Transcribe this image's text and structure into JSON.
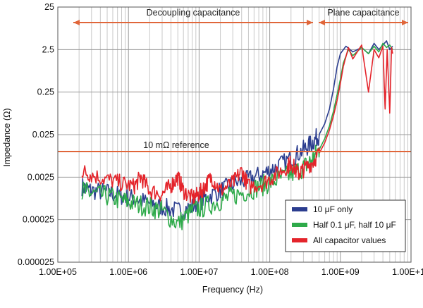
{
  "chart_data": {
    "type": "line",
    "x_scale": "log",
    "y_scale": "log",
    "xlim": [
      100000,
      10000000000
    ],
    "ylim": [
      2.5e-05,
      25
    ],
    "xlabel": "Frequency (Hz)",
    "ylabel": "Impedance (Ω)",
    "x_ticks": [
      {
        "value": 100000,
        "label": "1.00E+05"
      },
      {
        "value": 1000000,
        "label": "1.00E+06"
      },
      {
        "value": 10000000,
        "label": "1.00E+07"
      },
      {
        "value": 100000000,
        "label": "1.00E+08"
      },
      {
        "value": 1000000000,
        "label": "1.00E+09"
      },
      {
        "value": 10000000000,
        "label": "1.00E+10"
      }
    ],
    "y_ticks": [
      {
        "value": 25,
        "label": "25"
      },
      {
        "value": 2.5,
        "label": "2.5"
      },
      {
        "value": 0.25,
        "label": "0.25"
      },
      {
        "value": 0.025,
        "label": "0.025"
      },
      {
        "value": 0.0025,
        "label": "0.0025"
      },
      {
        "value": 0.00025,
        "label": "0.00025"
      },
      {
        "value": 2.5e-05,
        "label": "0.000025"
      }
    ],
    "grid": true,
    "legend_position": "bottom-right",
    "series": [
      {
        "name": "10 μF only",
        "color": "#2b3d8f",
        "points": [
          [
            220000.0,
            0.0015
          ],
          [
            300000.0,
            0.0012
          ],
          [
            500000.0,
            0.0011
          ],
          [
            800000.0,
            0.0009
          ],
          [
            1200000.0,
            0.0008
          ],
          [
            2000000.0,
            0.0006
          ],
          [
            3000000.0,
            0.0005
          ],
          [
            5000000.0,
            0.0004
          ],
          [
            8000000.0,
            0.0005
          ],
          [
            12000000.0,
            0.0008
          ],
          [
            20000000.0,
            0.0012
          ],
          [
            30000000.0,
            0.0017
          ],
          [
            50000000.0,
            0.0022
          ],
          [
            80000000.0,
            0.003
          ],
          [
            120000000.0,
            0.0042
          ],
          [
            200000000.0,
            0.0068
          ],
          [
            300000000.0,
            0.011
          ],
          [
            400000000.0,
            0.016
          ],
          [
            500000000.0,
            0.025
          ],
          [
            600000000.0,
            0.045
          ],
          [
            700000000.0,
            0.1
          ],
          [
            800000000.0,
            0.3
          ],
          [
            900000000.0,
            1.0
          ],
          [
            1000000000.0,
            2.0
          ],
          [
            1200000000.0,
            3.0
          ],
          [
            1500000000.0,
            2.2
          ],
          [
            2000000000.0,
            2.8
          ],
          [
            2500000000.0,
            2.0
          ],
          [
            3000000000.0,
            3.5
          ],
          [
            3500000000.0,
            2.5
          ],
          [
            4000000000.0,
            3.2
          ],
          [
            4500000000.0,
            4.0
          ],
          [
            5000000000.0,
            2.5
          ],
          [
            5500000000.0,
            3.0
          ]
        ]
      },
      {
        "name": "Half 0.1 μF, half 10 μF",
        "color": "#2eaa4a",
        "points": [
          [
            220000.0,
            0.0012
          ],
          [
            300000.0,
            0.001
          ],
          [
            500000.0,
            0.0009
          ],
          [
            800000.0,
            0.0007
          ],
          [
            1200000.0,
            0.0006
          ],
          [
            2000000.0,
            0.0005
          ],
          [
            3000000.0,
            0.0004
          ],
          [
            5000000.0,
            0.0002
          ],
          [
            8000000.0,
            0.0004
          ],
          [
            12000000.0,
            0.0005
          ],
          [
            20000000.0,
            0.0007
          ],
          [
            30000000.0,
            0.0009
          ],
          [
            50000000.0,
            0.0012
          ],
          [
            80000000.0,
            0.0016
          ],
          [
            120000000.0,
            0.0021
          ],
          [
            200000000.0,
            0.0029
          ],
          [
            300000000.0,
            0.0042
          ],
          [
            400000000.0,
            0.0065
          ],
          [
            500000000.0,
            0.011
          ],
          [
            600000000.0,
            0.02
          ],
          [
            700000000.0,
            0.04
          ],
          [
            800000000.0,
            0.09
          ],
          [
            900000000.0,
            0.22
          ],
          [
            1000000000.0,
            0.5
          ],
          [
            1100000000.0,
            1.2
          ],
          [
            1300000000.0,
            2.5
          ],
          [
            1500000000.0,
            1.8
          ],
          [
            2000000000.0,
            2.8
          ],
          [
            2500000000.0,
            2.0
          ],
          [
            3000000000.0,
            3.0
          ],
          [
            3500000000.0,
            2.2
          ],
          [
            4000000000.0,
            3.5
          ],
          [
            4500000000.0,
            2.8
          ],
          [
            5000000000.0,
            3.2
          ],
          [
            5500000000.0,
            2.5
          ]
        ]
      },
      {
        "name": "All capacitor values",
        "color": "#e4242b",
        "points": [
          [
            220000.0,
            0.0035
          ],
          [
            300000.0,
            0.0028
          ],
          [
            500000.0,
            0.0022
          ],
          [
            800000.0,
            0.0018
          ],
          [
            1200000.0,
            0.0015
          ],
          [
            1500000.0,
            0.0025
          ],
          [
            2000000.0,
            0.0012
          ],
          [
            3000000.0,
            0.001
          ],
          [
            4000000.0,
            0.0016
          ],
          [
            5000000.0,
            0.0025
          ],
          [
            6000000.0,
            0.0012
          ],
          [
            8000000.0,
            0.0008
          ],
          [
            10000000.0,
            0.001
          ],
          [
            12000000.0,
            0.0015
          ],
          [
            15000000.0,
            0.0025
          ],
          [
            20000000.0,
            0.0012
          ],
          [
            30000000.0,
            0.0018
          ],
          [
            40000000.0,
            0.0035
          ],
          [
            50000000.0,
            0.0015
          ],
          [
            80000000.0,
            0.0018
          ],
          [
            120000000.0,
            0.0028
          ],
          [
            180000000.0,
            0.0045
          ],
          [
            200000000.0,
            0.0055
          ],
          [
            250000000.0,
            0.003
          ],
          [
            300000000.0,
            0.0038
          ],
          [
            400000000.0,
            0.0055
          ],
          [
            500000000.0,
            0.009
          ],
          [
            600000000.0,
            0.016
          ],
          [
            700000000.0,
            0.032
          ],
          [
            800000000.0,
            0.07
          ],
          [
            900000000.0,
            0.16
          ],
          [
            1000000000.0,
            0.4
          ],
          [
            1100000000.0,
            1.0
          ],
          [
            1300000000.0,
            2.8
          ],
          [
            1500000000.0,
            1.5
          ],
          [
            2000000000.0,
            3.2
          ],
          [
            2500000000.0,
            0.25
          ],
          [
            3000000000.0,
            2.5
          ],
          [
            3500000000.0,
            1.6
          ],
          [
            4000000000.0,
            3.0
          ],
          [
            4300000000.0,
            0.1
          ],
          [
            4600000000.0,
            2.5
          ],
          [
            5000000000.0,
            0.08
          ],
          [
            5300000000.0,
            2.8
          ],
          [
            5500000000.0,
            2.0
          ]
        ]
      }
    ],
    "reference_line": {
      "value": 0.01,
      "label": "10 mΩ reference",
      "color": "#e0663a"
    },
    "ranges": [
      {
        "label": "Decoupling capacitance",
        "from": 100000,
        "to": 330000000.0,
        "y": 10,
        "color": "#e0663a"
      },
      {
        "label": "Plane capacitance",
        "from": 450000000.0,
        "to": 11000000000.0,
        "y": 10,
        "color": "#e0663a"
      }
    ]
  }
}
